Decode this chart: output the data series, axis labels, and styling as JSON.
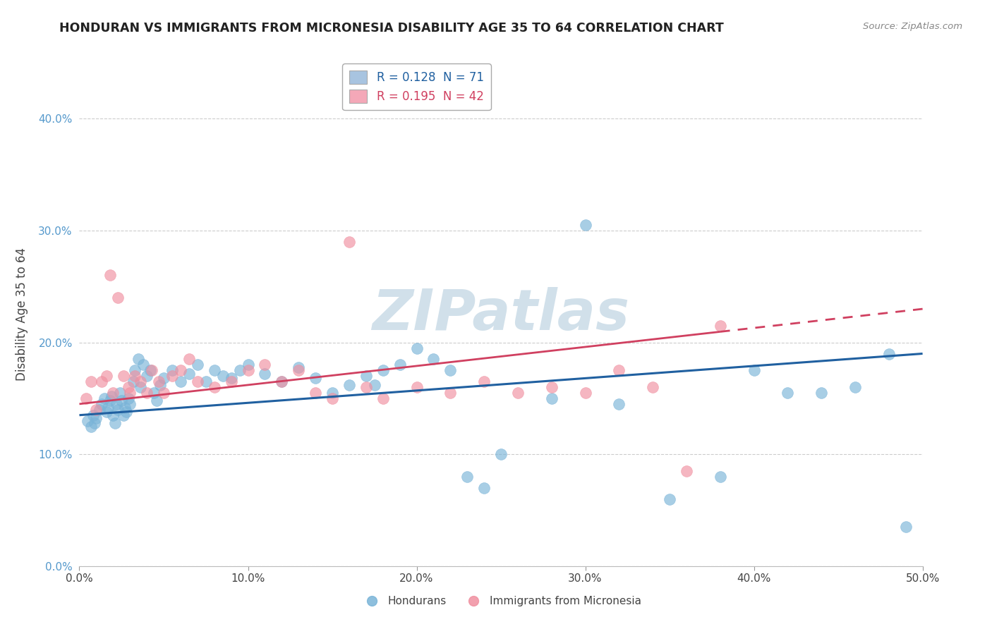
{
  "title": "HONDURAN VS IMMIGRANTS FROM MICRONESIA DISABILITY AGE 35 TO 64 CORRELATION CHART",
  "source": "Source: ZipAtlas.com",
  "ylabel": "Disability Age 35 to 64",
  "xlim": [
    0.0,
    0.5
  ],
  "ylim": [
    0.0,
    0.45
  ],
  "xticks": [
    0.0,
    0.1,
    0.2,
    0.3,
    0.4,
    0.5
  ],
  "xtick_labels": [
    "0.0%",
    "10.0%",
    "20.0%",
    "30.0%",
    "40.0%",
    "50.0%"
  ],
  "yticks": [
    0.0,
    0.1,
    0.2,
    0.3,
    0.4
  ],
  "ytick_labels": [
    "0.0%",
    "10.0%",
    "20.0%",
    "30.0%",
    "40.0%"
  ],
  "legend_colors": [
    "#a8c4e0",
    "#f4a8b8"
  ],
  "hondurans_color": "#7ab4d8",
  "micronesia_color": "#f090a0",
  "trend_hondurans_color": "#2060a0",
  "trend_micronesia_color": "#d04060",
  "watermark_color": "#d8e8f0",
  "R_hondurans": 0.128,
  "N_hondurans": 71,
  "R_micronesia": 0.195,
  "N_micronesia": 42,
  "hondurans_x": [
    0.005,
    0.007,
    0.008,
    0.009,
    0.01,
    0.012,
    0.013,
    0.015,
    0.016,
    0.017,
    0.018,
    0.019,
    0.02,
    0.021,
    0.022,
    0.023,
    0.024,
    0.025,
    0.026,
    0.027,
    0.028,
    0.029,
    0.03,
    0.032,
    0.033,
    0.035,
    0.036,
    0.038,
    0.04,
    0.042,
    0.044,
    0.046,
    0.048,
    0.05,
    0.055,
    0.06,
    0.065,
    0.07,
    0.075,
    0.08,
    0.085,
    0.09,
    0.095,
    0.1,
    0.11,
    0.12,
    0.13,
    0.14,
    0.15,
    0.16,
    0.17,
    0.175,
    0.18,
    0.19,
    0.2,
    0.21,
    0.22,
    0.23,
    0.24,
    0.25,
    0.28,
    0.3,
    0.32,
    0.35,
    0.38,
    0.4,
    0.42,
    0.44,
    0.46,
    0.48,
    0.49
  ],
  "hondurans_y": [
    0.13,
    0.125,
    0.135,
    0.128,
    0.132,
    0.14,
    0.145,
    0.15,
    0.138,
    0.142,
    0.148,
    0.152,
    0.135,
    0.128,
    0.145,
    0.14,
    0.155,
    0.148,
    0.135,
    0.142,
    0.138,
    0.15,
    0.145,
    0.165,
    0.175,
    0.185,
    0.16,
    0.18,
    0.17,
    0.175,
    0.155,
    0.148,
    0.162,
    0.168,
    0.175,
    0.165,
    0.172,
    0.18,
    0.165,
    0.175,
    0.17,
    0.168,
    0.175,
    0.18,
    0.172,
    0.165,
    0.178,
    0.168,
    0.155,
    0.162,
    0.17,
    0.162,
    0.175,
    0.18,
    0.195,
    0.185,
    0.175,
    0.08,
    0.07,
    0.1,
    0.15,
    0.305,
    0.145,
    0.06,
    0.08,
    0.175,
    0.155,
    0.155,
    0.16,
    0.19,
    0.035
  ],
  "micronesia_x": [
    0.004,
    0.007,
    0.01,
    0.013,
    0.016,
    0.018,
    0.02,
    0.023,
    0.026,
    0.029,
    0.03,
    0.033,
    0.036,
    0.04,
    0.043,
    0.047,
    0.05,
    0.055,
    0.06,
    0.065,
    0.07,
    0.08,
    0.09,
    0.1,
    0.11,
    0.12,
    0.13,
    0.14,
    0.15,
    0.16,
    0.17,
    0.18,
    0.2,
    0.22,
    0.24,
    0.26,
    0.28,
    0.3,
    0.32,
    0.34,
    0.36,
    0.38
  ],
  "micronesia_y": [
    0.15,
    0.165,
    0.14,
    0.165,
    0.17,
    0.26,
    0.155,
    0.24,
    0.17,
    0.16,
    0.155,
    0.17,
    0.165,
    0.155,
    0.175,
    0.165,
    0.155,
    0.17,
    0.175,
    0.185,
    0.165,
    0.16,
    0.165,
    0.175,
    0.18,
    0.165,
    0.175,
    0.155,
    0.15,
    0.29,
    0.16,
    0.15,
    0.16,
    0.155,
    0.165,
    0.155,
    0.16,
    0.155,
    0.175,
    0.16,
    0.085,
    0.215
  ],
  "trend_h_x0": 0.0,
  "trend_h_x1": 0.5,
  "trend_h_y0": 0.135,
  "trend_h_y1": 0.19,
  "trend_m_x0": 0.0,
  "trend_m_x1": 0.5,
  "trend_m_y0": 0.145,
  "trend_m_y1": 0.23
}
